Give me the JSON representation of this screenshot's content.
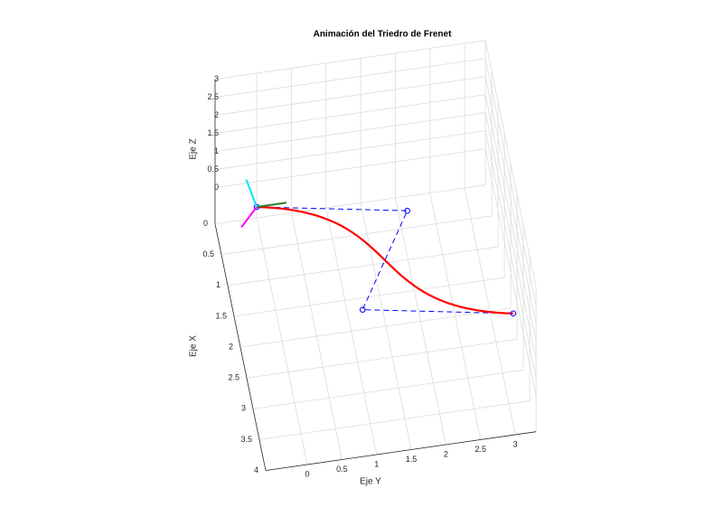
{
  "chart_data": {
    "type": "bezier3d",
    "title": "Animación del Triedro de Frenet",
    "xlabel": "Eje X",
    "ylabel": "Eje Y",
    "zlabel": "Eje Z",
    "xlim": [
      0,
      4
    ],
    "ylim": [
      -0.6,
      3.3
    ],
    "zlim": [
      -1,
      3
    ],
    "xticks": [
      0,
      0.5,
      1,
      1.5,
      2,
      2.5,
      3,
      3.5,
      4
    ],
    "yticks": [
      0,
      0.5,
      1,
      1.5,
      2,
      2.5,
      3
    ],
    "zticks": [
      0,
      0.5,
      1,
      1.5,
      2,
      2.5,
      3
    ],
    "grid": true,
    "curve_color": "#ff0000",
    "polygon_color": "#0000ff",
    "control_points": [
      [
        0,
        0,
        -0.7
      ],
      [
        0.4,
        2.1,
        -0.7
      ],
      [
        1.8,
        1.2,
        -0.8
      ],
      [
        2.2,
        3.3,
        -0.8
      ]
    ],
    "frenet": {
      "origin_index": 0,
      "tangent": {
        "vector": [
          0,
          0.43,
          0
        ],
        "color": "#2e7d32"
      },
      "normal": {
        "vector": [
          0,
          -0.22,
          -0.5
        ],
        "color": "#ff00ff"
      },
      "binormal": {
        "vector": [
          0,
          -0.15,
          0.8
        ],
        "color": "#00e5ff"
      }
    }
  }
}
